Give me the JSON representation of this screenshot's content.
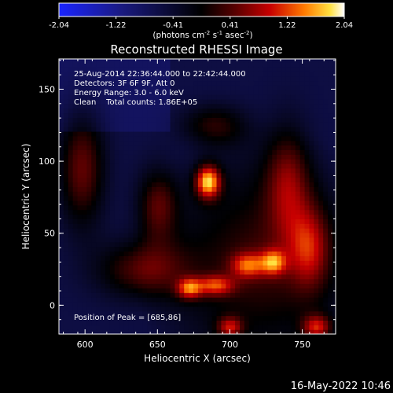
{
  "chart_data": {
    "type": "heatmap",
    "title": "Reconstructed RHESSI Image",
    "xlabel": "Heliocentric X (arcsec)",
    "ylabel": "Heliocentric Y (arcsec)",
    "xlim": [
      582,
      773
    ],
    "ylim": [
      -20,
      171
    ],
    "x_ticks": [
      600,
      650,
      700,
      750
    ],
    "y_ticks": [
      0,
      50,
      100,
      150
    ],
    "colorbar": {
      "range": [
        -2.04,
        2.04
      ],
      "ticks": [
        "-2.04",
        "-1.22",
        "-0.41",
        "0.41",
        "1.22",
        "2.04"
      ],
      "unit_prefix": "(photons cm",
      "unit_sup1": "-2",
      "unit_mid1": " s",
      "unit_sup2": "-1",
      "unit_mid2": " asec",
      "unit_sup3": "-2",
      "unit_suffix": ")"
    },
    "annotations": [
      "25-Aug-2014 22:36:44.000 to 22:42:44.000",
      "Detectors: 3F 6F 9F, Att 0",
      "Energy Range: 3.0 - 6.0 keV",
      "Clean    Total counts: 1.86E+05"
    ],
    "peak_label": "Position of Peak = [685,86]",
    "peak": {
      "x": 685,
      "y": 86,
      "value": 2.04
    },
    "sources": [
      {
        "x": 685,
        "y": 86,
        "value": 2.0,
        "sx": 6,
        "sy": 8
      },
      {
        "x": 672,
        "y": 12,
        "value": 1.1,
        "sx": 6,
        "sy": 5
      },
      {
        "x": 690,
        "y": 14,
        "value": 0.9,
        "sx": 9,
        "sy": 5
      },
      {
        "x": 730,
        "y": 30,
        "value": 1.0,
        "sx": 6,
        "sy": 6
      },
      {
        "x": 712,
        "y": 28,
        "value": 0.8,
        "sx": 8,
        "sy": 6
      },
      {
        "x": 760,
        "y": -15,
        "value": 1.0,
        "sx": 7,
        "sy": 6
      },
      {
        "x": 700,
        "y": -15,
        "value": 0.8,
        "sx": 6,
        "sy": 5
      },
      {
        "x": 598,
        "y": 95,
        "value": 0.7,
        "sx": 11,
        "sy": 28
      },
      {
        "x": 740,
        "y": 85,
        "value": 0.6,
        "sx": 11,
        "sy": 28
      },
      {
        "x": 650,
        "y": 70,
        "value": 0.55,
        "sx": 10,
        "sy": 18
      },
      {
        "x": 690,
        "y": 125,
        "value": 0.35,
        "sx": 16,
        "sy": 10
      },
      {
        "x": 640,
        "y": 25,
        "value": 0.6,
        "sx": 22,
        "sy": 14
      },
      {
        "x": 755,
        "y": 40,
        "value": 0.7,
        "sx": 10,
        "sy": 20
      }
    ],
    "background_value": -0.6,
    "grid": false
  },
  "footer": {
    "timestamp": "16-May-2022 10:46"
  }
}
